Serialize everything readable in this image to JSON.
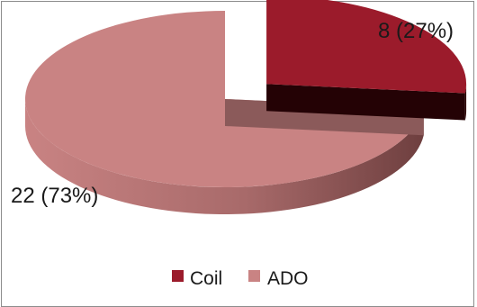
{
  "chart_data": {
    "type": "pie",
    "style": "3d-exploded",
    "title": "",
    "categories": [
      "Coil",
      "ADO"
    ],
    "values": [
      8,
      22
    ],
    "percents": [
      27,
      73
    ],
    "data_labels": [
      "8 (27%)",
      "22 (73%)"
    ],
    "colors": {
      "Coil": "#9b1b2b",
      "ADO": "#c98383"
    },
    "side_colors": {
      "Coil": "#3a0508",
      "ADO": "#6e3f3f"
    },
    "legend_position": "bottom",
    "legend": [
      {
        "label": "Coil",
        "color": "#9b1b2b"
      },
      {
        "label": "ADO",
        "color": "#c98383"
      }
    ]
  }
}
